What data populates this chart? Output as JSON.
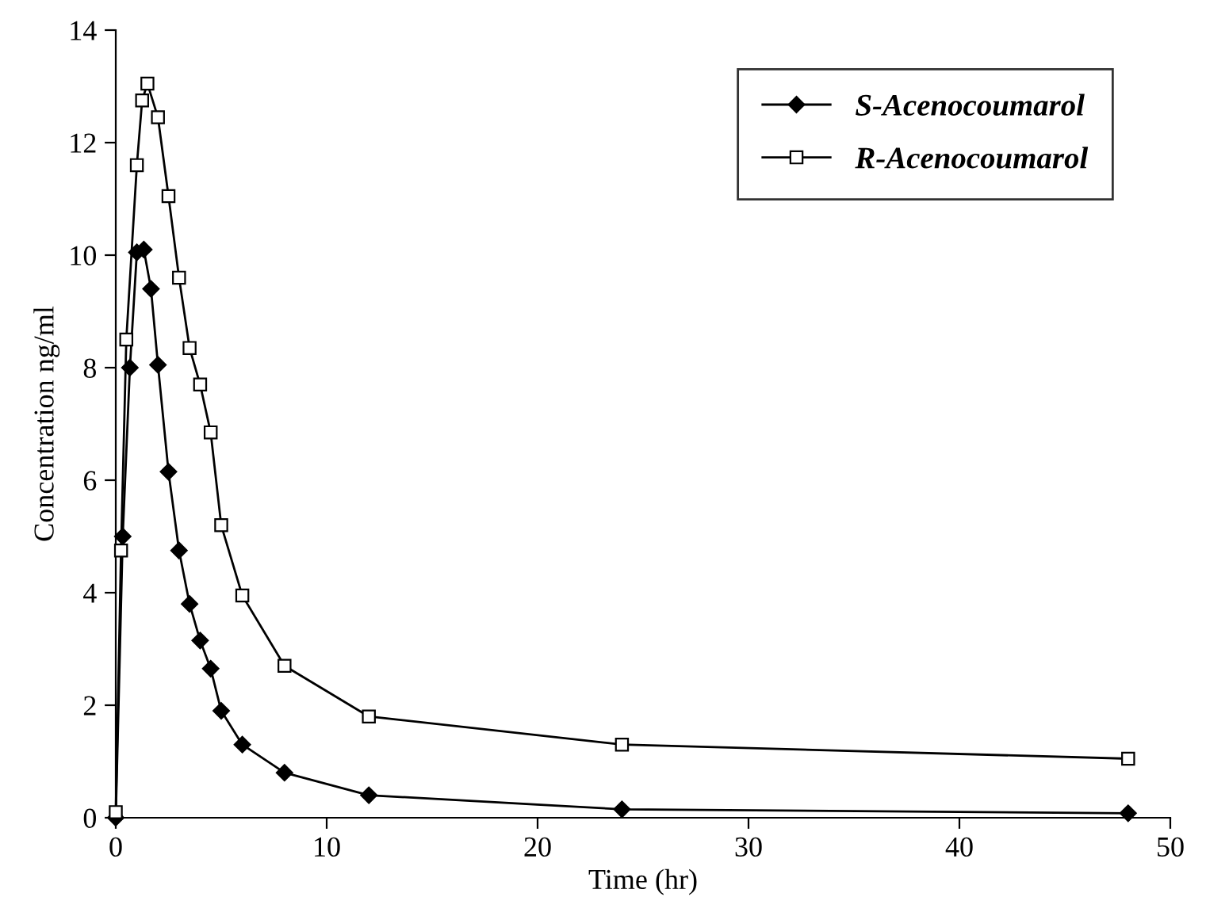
{
  "chart_data": {
    "type": "line",
    "xlabel": "Time (hr)",
    "ylabel": "Concentration ng/ml",
    "xlim": [
      0,
      50
    ],
    "xticks": [
      0,
      10,
      20,
      30,
      40,
      50
    ],
    "ylim": [
      0,
      14
    ],
    "yticks": [
      0,
      2,
      4,
      6,
      8,
      10,
      12,
      14
    ],
    "grid": false,
    "legend": "top right",
    "line_style": "solid",
    "series": [
      {
        "name": "S-Acenocoumarol",
        "color": "#000000",
        "marker": "diamond",
        "x": [
          0,
          0.33,
          0.67,
          1,
          1.33,
          1.67,
          2,
          2.5,
          3,
          3.5,
          4,
          4.5,
          5,
          6,
          8,
          12,
          24,
          48
        ],
        "values": [
          0,
          5.0,
          8.0,
          10.05,
          10.1,
          9.4,
          8.05,
          6.15,
          4.75,
          3.8,
          3.15,
          2.65,
          1.9,
          1.3,
          0.8,
          0.4,
          0.15,
          0.08
        ]
      },
      {
        "name": "R-Acenocoumarol",
        "color": "#000000",
        "marker": "square",
        "x": [
          0,
          0.25,
          0.5,
          1,
          1.25,
          1.5,
          2,
          2.5,
          3,
          3.5,
          4,
          4.5,
          5,
          6,
          8,
          12,
          24,
          48
        ],
        "values": [
          0.1,
          4.75,
          8.5,
          11.6,
          12.75,
          13.05,
          12.45,
          11.05,
          9.6,
          8.35,
          7.7,
          6.85,
          5.2,
          3.95,
          2.7,
          1.8,
          1.3,
          1.05
        ]
      }
    ]
  }
}
